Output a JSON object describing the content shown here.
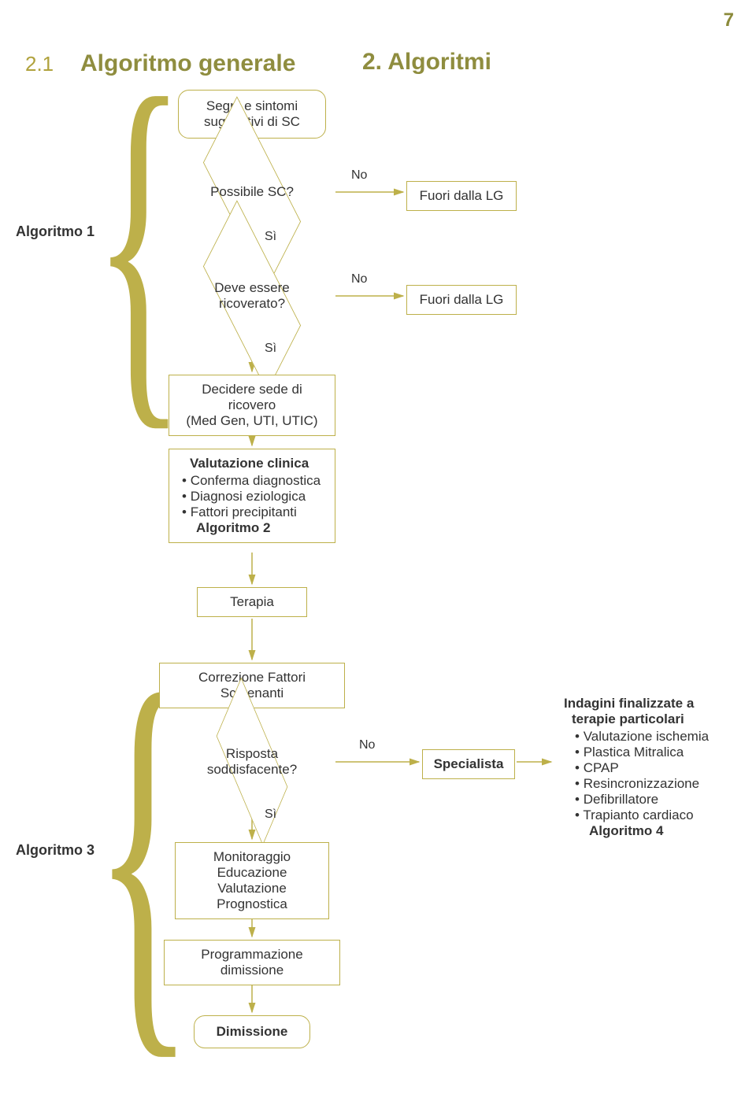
{
  "page_number": "7",
  "header": {
    "section_num": "2.1",
    "section_title": "Algoritmo generale",
    "center_title": "2. Algoritmi"
  },
  "labels": {
    "algo1": "Algoritmo 1",
    "algo3": "Algoritmo 3",
    "si": "Sì",
    "no": "No"
  },
  "nodes": {
    "n1": "Segni e sintomi\nsuggestivi di SC",
    "d1": "Possibile SC?",
    "r1": "Fuori dalla LG",
    "d2_l1": "Deve essere",
    "d2_l2": "ricoverato?",
    "r2": "Fuori dalla LG",
    "n2": "Decidere sede di ricovero\n(Med Gen, UTI, UTIC)",
    "val_title": "Valutazione clinica",
    "val_items": [
      "Conferma diagnostica",
      "Diagnosi eziologica",
      "Fattori precipitanti"
    ],
    "val_bold": "Algoritmo 2",
    "terapia": "Terapia",
    "corr": "Correzione Fattori Scatenanti",
    "d3_l1": "Risposta",
    "d3_l2": "soddisfacente?",
    "specialista": "Specialista",
    "ind_title": "Indagini finalizzate a",
    "ind_sub": "terapie particolari",
    "ind_items": [
      "Valutazione ischemia",
      "Plastica Mitralica",
      "CPAP",
      "Resincronizzazione",
      "Defibrillatore",
      "Trapianto cardiaco"
    ],
    "ind_bold": "Algoritmo 4",
    "mon": "Monitoraggio\nEducazione\nValutazione Prognostica",
    "prog": "Programmazione dimissione",
    "dim": "Dimissione"
  },
  "style": {
    "border_color": "#bdb04a",
    "olive_text": "#8f8d3f",
    "olive_light": "#b0a23d",
    "arrow_color": "#bdb04a",
    "brace_color": "#bdb04a"
  }
}
